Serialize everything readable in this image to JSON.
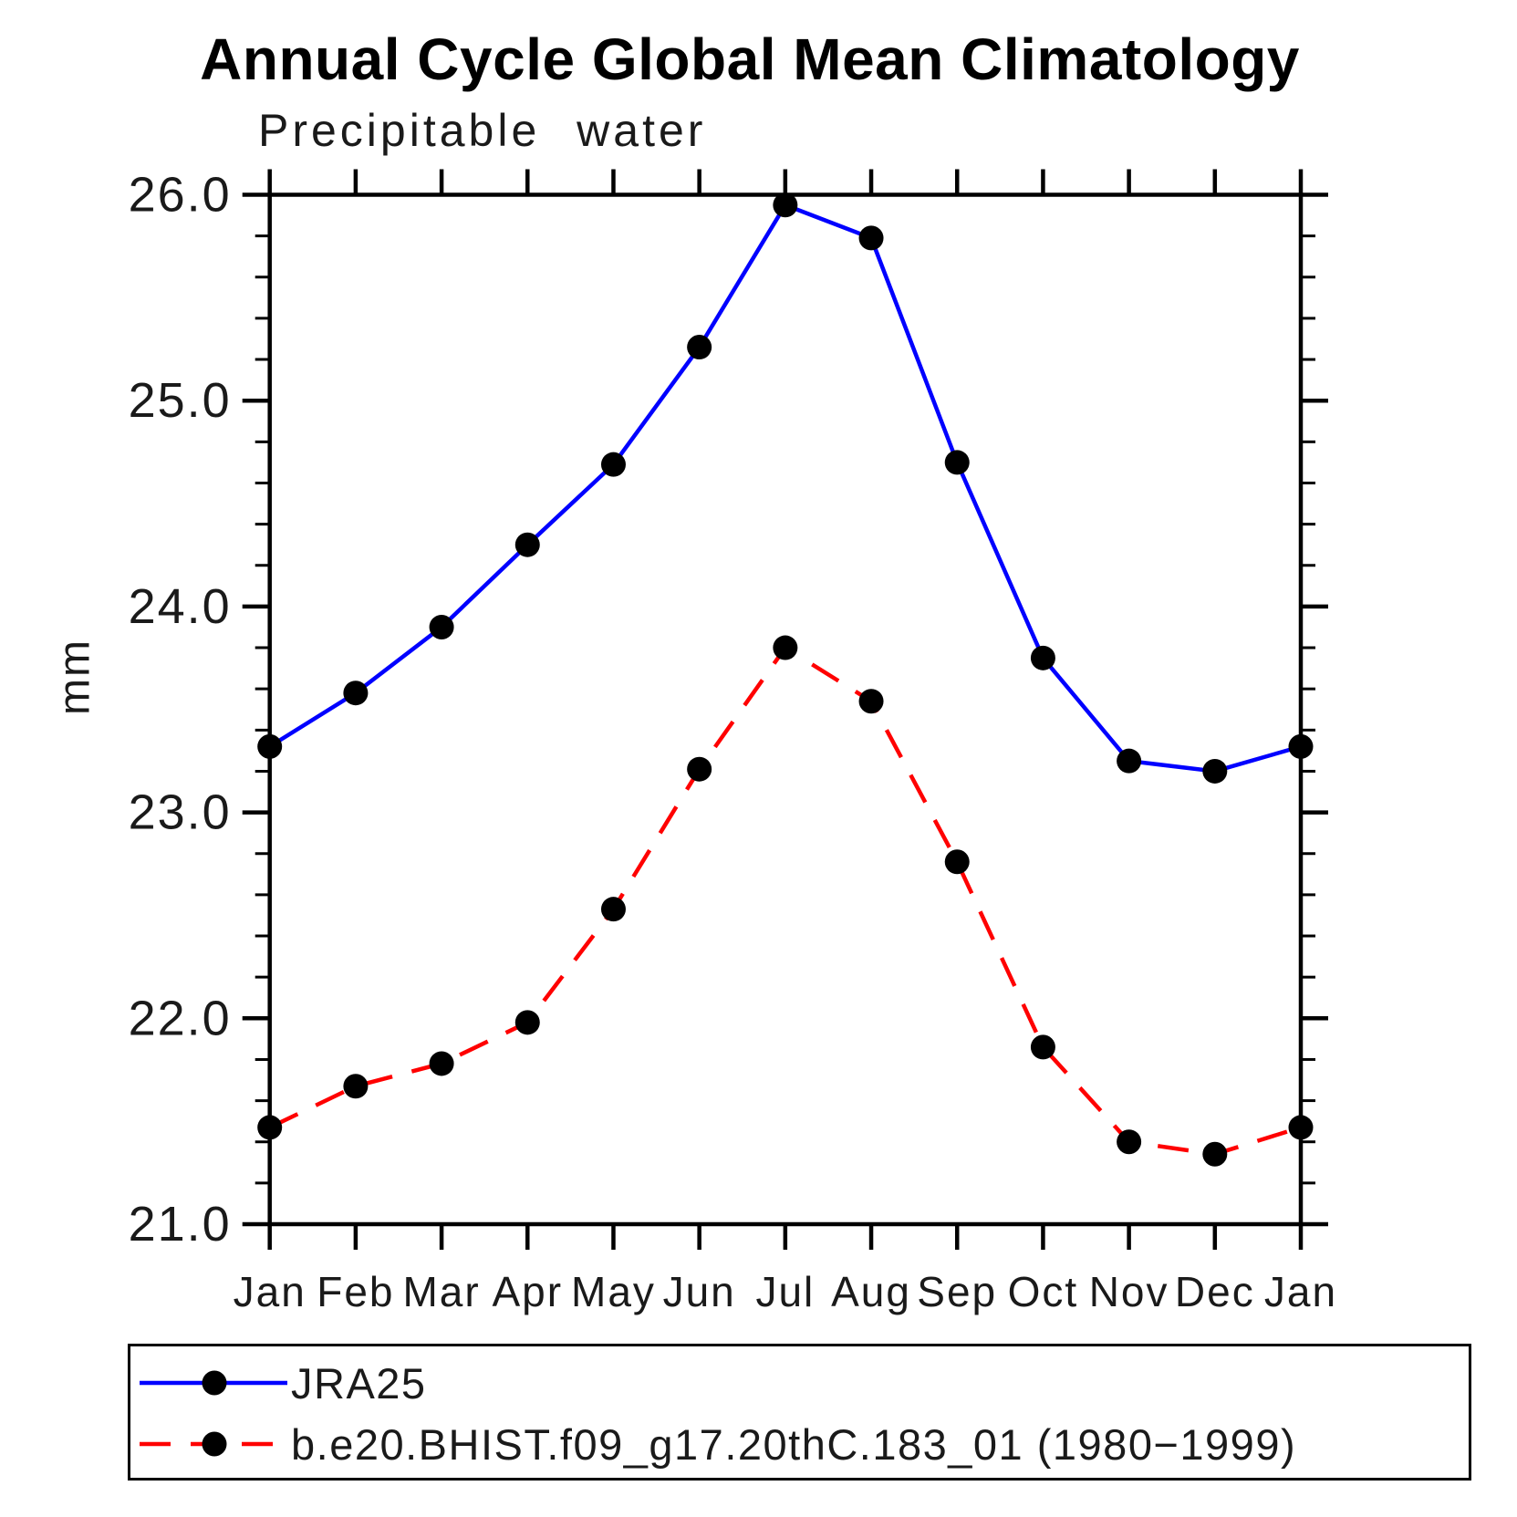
{
  "title": "Annual Cycle Global Mean Climatology",
  "chart_data": {
    "type": "line",
    "title": "Annual Cycle Global Mean Climatology",
    "subtitle": "Precipitable water",
    "ylabel": "mm",
    "xlabel": "",
    "categories": [
      "Jan",
      "Feb",
      "Mar",
      "Apr",
      "May",
      "Jun",
      "Jul",
      "Aug",
      "Sep",
      "Oct",
      "Nov",
      "Dec",
      "Jan"
    ],
    "ylim": [
      21.0,
      26.0
    ],
    "ytick_interval": 1.0,
    "yminor_interval": 0.2,
    "ytick_labels": [
      "21.0",
      "22.0",
      "23.0",
      "24.0",
      "25.0",
      "26.0"
    ],
    "grid": false,
    "legend_position": "bottom",
    "marker": "filled-circle",
    "marker_color": "#000000",
    "series": [
      {
        "name": "JRA25",
        "color": "#0000ff",
        "line_style": "solid",
        "values": [
          23.32,
          23.58,
          23.9,
          24.3,
          24.69,
          25.26,
          25.95,
          25.79,
          24.7,
          23.75,
          23.25,
          23.2,
          23.32
        ]
      },
      {
        "name": "b.e20.BHIST.f09_g17.20thC.183_01 (1980−1999)",
        "color": "#ff0000",
        "line_style": "dashed",
        "values": [
          21.47,
          21.67,
          21.78,
          21.98,
          22.53,
          23.21,
          23.8,
          23.54,
          22.76,
          21.86,
          21.4,
          21.34,
          21.47
        ]
      }
    ]
  }
}
